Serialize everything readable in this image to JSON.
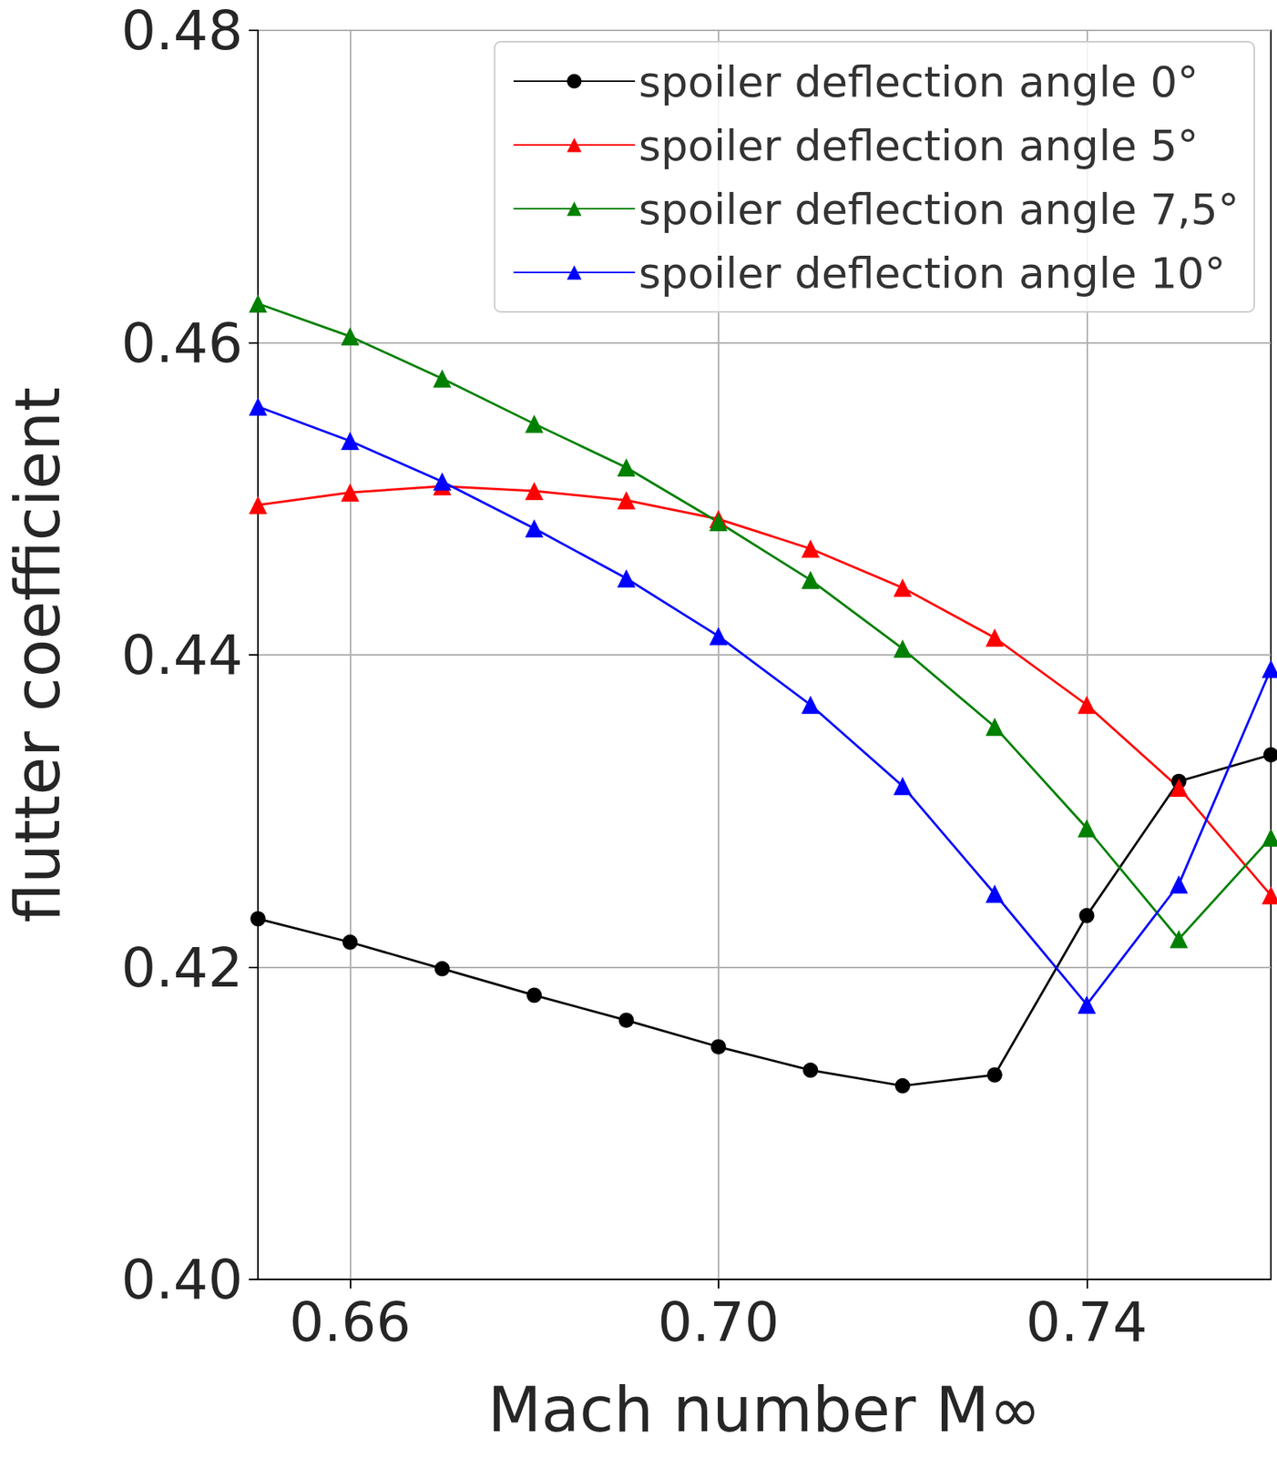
{
  "chart_data": {
    "type": "line",
    "x_label": "Mach number M∞",
    "y_label": "flutter coefficient",
    "x": [
      0.65,
      0.66,
      0.67,
      0.68,
      0.69,
      0.7,
      0.71,
      0.72,
      0.73,
      0.74,
      0.75,
      0.76
    ],
    "series": [
      {
        "name": "spoiler deflection angle 0°",
        "color": "#000000",
        "marker": "circle",
        "values": [
          0.4231,
          0.4216,
          0.4199,
          0.4182,
          0.4166,
          0.4149,
          0.4134,
          0.4124,
          0.4131,
          0.4233,
          0.4319,
          0.4336
        ]
      },
      {
        "name": "spoiler deflection angle 5°",
        "color": "#ff0000",
        "marker": "triangle",
        "values": [
          0.4496,
          0.4504,
          0.4508,
          0.4505,
          0.4499,
          0.4487,
          0.4468,
          0.4443,
          0.4411,
          0.4368,
          0.4315,
          0.4246
        ]
      },
      {
        "name": "spoiler deflection angle 7,5°",
        "color": "#008000",
        "marker": "triangle",
        "values": [
          0.4625,
          0.4604,
          0.4577,
          0.4548,
          0.452,
          0.4485,
          0.4448,
          0.4404,
          0.4354,
          0.4289,
          0.4218,
          0.4283
        ]
      },
      {
        "name": "spoiler deflection angle 10°",
        "color": "#0000ff",
        "marker": "triangle",
        "values": [
          0.4559,
          0.4537,
          0.4511,
          0.4481,
          0.4449,
          0.4412,
          0.4368,
          0.4316,
          0.4247,
          0.4176,
          0.4253,
          0.4391
        ]
      }
    ],
    "xlim": [
      0.65,
      0.76
    ],
    "xticks": [
      {
        "value": 0.66,
        "label": "0.66"
      },
      {
        "value": 0.7,
        "label": "0.70"
      },
      {
        "value": 0.74,
        "label": "0.74"
      }
    ],
    "ylim": [
      0.4,
      0.48
    ],
    "yticks": [
      {
        "value": 0.4,
        "label": "0.40"
      },
      0.42,
      0.44,
      0.46,
      0.48
    ],
    "grid": true,
    "legend": "upper right"
  }
}
